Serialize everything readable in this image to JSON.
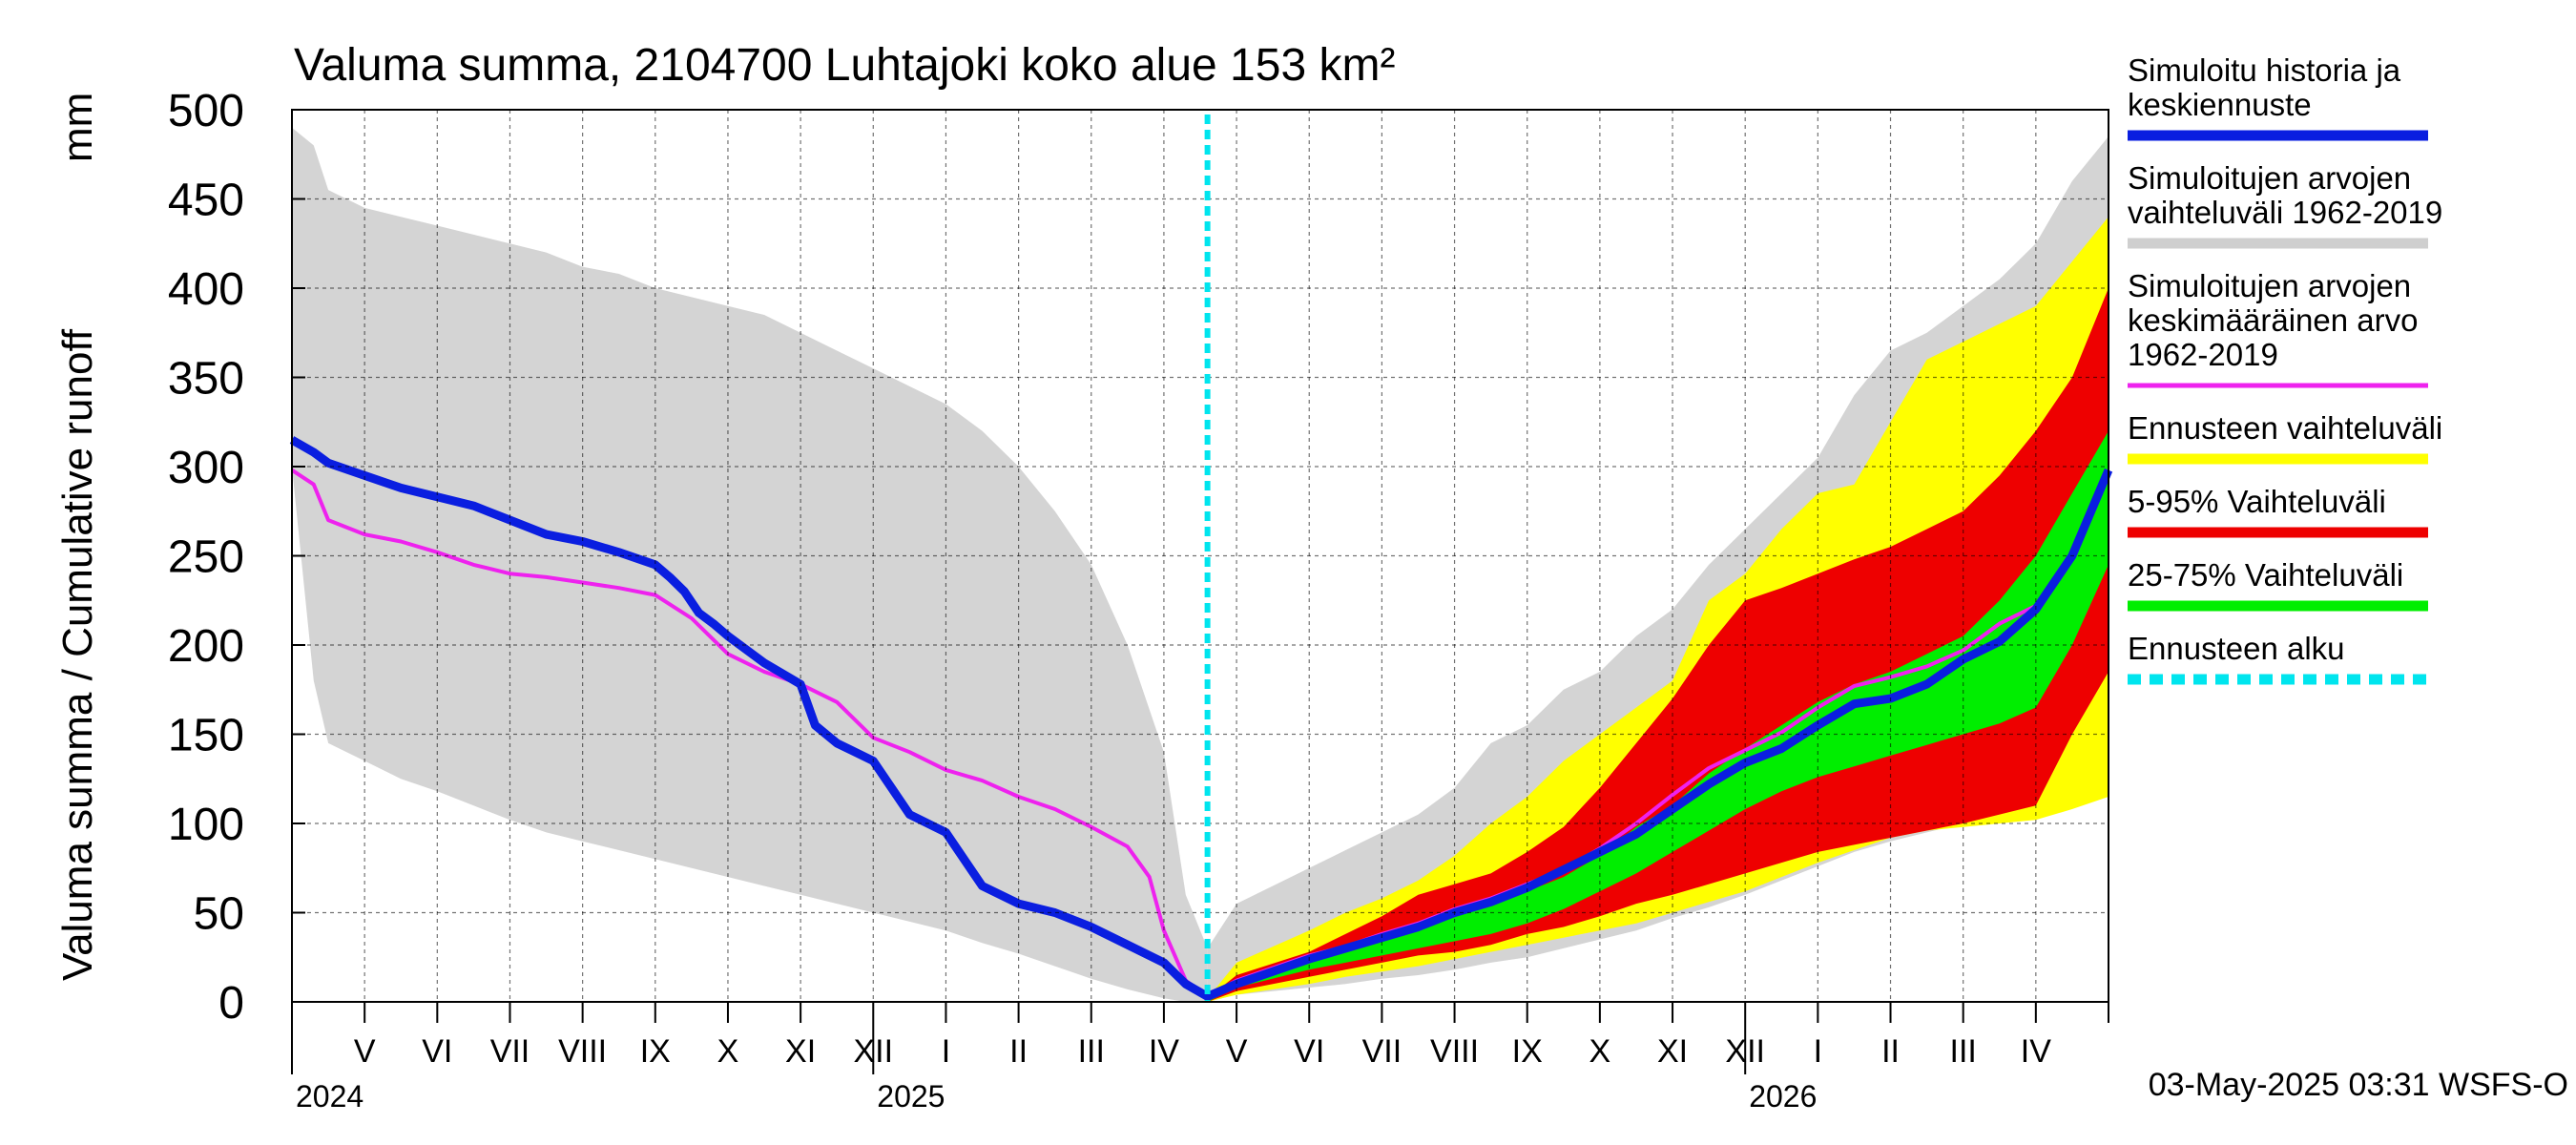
{
  "chart_data": {
    "type": "area",
    "title": "Valuma summa, 2104700 Luhtajoki koko alue 153 km²",
    "ylabel": "Valuma summa / Cumulative runoff",
    "yunit": "mm",
    "ylim": [
      0,
      500
    ],
    "yticks": [
      0,
      50,
      100,
      150,
      200,
      250,
      300,
      350,
      400,
      450,
      500
    ],
    "x_range": [
      "2024-04-15",
      "2026-05-15"
    ],
    "month_labels": [
      "V",
      "VI",
      "VII",
      "VIII",
      "IX",
      "X",
      "XI",
      "XII",
      "I",
      "II",
      "III",
      "IV",
      "V",
      "VI",
      "VII",
      "VIII",
      "IX",
      "X",
      "XI",
      "XII",
      "I",
      "II",
      "III",
      "IV"
    ],
    "year_labels": [
      "2024",
      "2025",
      "2026"
    ],
    "forecast_start": "2025-05-03",
    "footer": "03-May-2025 03:31 WSFS-O",
    "legend": [
      {
        "label": [
          "Simuloitu historia ja",
          "keskiennuste"
        ],
        "color": "#0a1ee0",
        "style": "thick"
      },
      {
        "label": [
          "Simuloitujen arvojen",
          "vaihteluväli 1962-2019"
        ],
        "color": "#cfcfcf",
        "style": "thick"
      },
      {
        "label": [
          "Simuloitujen arvojen",
          "keskimääräinen arvo",
          "   1962-2019"
        ],
        "color": "#ee22ee",
        "style": "thin"
      },
      {
        "label": [
          "Ennusteen vaihteluväli"
        ],
        "color": "#ffff00",
        "style": "thick"
      },
      {
        "label": [
          "5-95% Vaihteluväli"
        ],
        "color": "#ee0000",
        "style": "thick"
      },
      {
        "label": [
          "25-75% Vaihteluväli"
        ],
        "color": "#00ee00",
        "style": "thick"
      },
      {
        "label": [
          "Ennusteen alku"
        ],
        "color": "#00e5ee",
        "style": "dashed"
      }
    ],
    "series": [
      {
        "name": "Simuloitujen arvojen vaihteluväli 1962-2019 (historia)",
        "color": "#d4d4d4",
        "x": [
          0,
          0.3,
          0.5,
          1,
          1.5,
          2,
          2.5,
          3,
          3.5,
          4,
          4.5,
          5,
          5.5,
          6,
          6.5,
          7,
          7.5,
          8,
          8.5,
          9,
          9.5,
          10,
          10.5,
          11,
          11.5,
          12,
          12.3,
          12.6
        ],
        "upper": [
          490,
          480,
          455,
          445,
          440,
          435,
          430,
          425,
          420,
          412,
          408,
          400,
          395,
          390,
          385,
          375,
          365,
          355,
          345,
          335,
          320,
          300,
          275,
          245,
          200,
          140,
          60,
          30
        ],
        "lower": [
          300,
          180,
          145,
          135,
          125,
          118,
          110,
          102,
          95,
          90,
          85,
          80,
          75,
          70,
          65,
          60,
          55,
          50,
          45,
          40,
          33,
          27,
          20,
          13,
          7,
          2,
          0,
          0
        ]
      },
      {
        "name": "Simuloitujen arvojen vaihteluväli 1962-2019 (ennuste)",
        "color": "#d4d4d4",
        "x": [
          12.6,
          13,
          14,
          14.5,
          15,
          15.5,
          16,
          16.5,
          17,
          17.5,
          18,
          18.5,
          19,
          19.5,
          20,
          20.5,
          21,
          21.5,
          22,
          22.5,
          23,
          23.5,
          24,
          24.5,
          25
        ],
        "upper": [
          30,
          55,
          75,
          85,
          95,
          105,
          120,
          145,
          155,
          175,
          185,
          205,
          220,
          245,
          265,
          285,
          305,
          340,
          365,
          375,
          390,
          405,
          425,
          460,
          485
        ],
        "lower": [
          0,
          4,
          8,
          10,
          13,
          15,
          18,
          22,
          25,
          30,
          35,
          40,
          47,
          53,
          60,
          68,
          76,
          84,
          90,
          95,
          100,
          105,
          110,
          125,
          150
        ]
      },
      {
        "name": "Ennusteen vaihteluväli",
        "color": "#ffff00",
        "x": [
          12.6,
          13,
          14,
          14.5,
          15,
          15.5,
          16,
          16.5,
          17,
          17.5,
          18,
          18.5,
          19,
          19.5,
          20,
          20.5,
          21,
          21.5,
          22,
          22.5,
          23,
          23.5,
          24,
          24.5,
          25
        ],
        "upper": [
          2,
          22,
          40,
          50,
          58,
          68,
          82,
          100,
          115,
          135,
          150,
          165,
          180,
          225,
          240,
          265,
          285,
          290,
          325,
          360,
          370,
          380,
          390,
          415,
          440
        ],
        "lower": [
          0,
          4,
          10,
          14,
          17,
          20,
          24,
          28,
          32,
          36,
          40,
          44,
          50,
          56,
          62,
          70,
          78,
          85,
          92,
          96,
          98,
          100,
          102,
          108,
          115
        ]
      },
      {
        "name": "5-95% Vaihteluväli",
        "color": "#ee0000",
        "x": [
          12.6,
          13,
          14,
          14.5,
          15,
          15.5,
          16,
          16.5,
          17,
          17.5,
          18,
          18.5,
          19,
          19.5,
          20,
          20.5,
          21,
          21.5,
          22,
          22.5,
          23,
          23.5,
          24,
          24.5,
          25
        ],
        "upper": [
          2,
          15,
          28,
          38,
          48,
          60,
          66,
          72,
          84,
          98,
          120,
          145,
          170,
          200,
          225,
          232,
          240,
          248,
          255,
          265,
          275,
          295,
          320,
          350,
          400
        ],
        "lower": [
          0,
          6,
          14,
          18,
          22,
          26,
          28,
          32,
          38,
          42,
          48,
          55,
          60,
          66,
          72,
          78,
          84,
          88,
          92,
          96,
          100,
          105,
          110,
          150,
          185
        ]
      },
      {
        "name": "25-75% Vaihteluväli",
        "color": "#00ee00",
        "x": [
          12.6,
          13,
          14,
          14.5,
          15,
          15.5,
          16,
          16.5,
          17,
          17.5,
          18,
          18.5,
          19,
          19.5,
          20,
          20.5,
          21,
          21.5,
          22,
          22.5,
          23,
          23.5,
          24,
          24.5,
          25
        ],
        "upper": [
          2,
          10,
          24,
          30,
          36,
          42,
          50,
          56,
          62,
          70,
          82,
          98,
          110,
          128,
          142,
          155,
          168,
          178,
          185,
          195,
          205,
          225,
          250,
          285,
          320
        ],
        "lower": [
          0,
          8,
          18,
          22,
          26,
          30,
          34,
          38,
          44,
          52,
          62,
          72,
          84,
          96,
          108,
          118,
          126,
          132,
          138,
          144,
          150,
          156,
          165,
          200,
          245
        ]
      },
      {
        "name": "Simuloitujen arvojen keskimääräinen arvo 1962-2019",
        "color": "#ee22ee",
        "x": [
          0,
          0.3,
          0.5,
          1,
          1.5,
          2,
          2.5,
          3,
          3.5,
          4,
          4.5,
          5,
          5.5,
          6,
          6.5,
          7,
          7.5,
          8,
          8.5,
          9,
          9.5,
          10,
          10.5,
          11,
          11.5,
          11.8,
          12,
          12.3,
          12.6,
          13,
          14,
          14.5,
          15,
          15.5,
          16,
          16.5,
          17,
          17.5,
          18,
          18.5,
          19,
          19.5,
          20,
          20.5,
          21,
          21.5,
          22,
          22.5,
          23,
          23.5,
          24,
          24.5,
          25
        ],
        "values": [
          298,
          290,
          270,
          262,
          258,
          252,
          245,
          240,
          238,
          235,
          232,
          228,
          215,
          195,
          185,
          178,
          168,
          148,
          140,
          130,
          124,
          115,
          108,
          98,
          87,
          70,
          40,
          12,
          3,
          12,
          26,
          31,
          38,
          44,
          52,
          58,
          66,
          74,
          86,
          100,
          116,
          131,
          141,
          151,
          165,
          177,
          182,
          188,
          197,
          212,
          222,
          250,
          298
        ]
      },
      {
        "name": "Simuloitu historia ja keskiennuste",
        "color": "#0a1ee0",
        "x": [
          0,
          0.3,
          0.5,
          1,
          1.5,
          2,
          2.5,
          3,
          3.5,
          4,
          4.5,
          5,
          5.2,
          5.4,
          5.6,
          5.8,
          6,
          6.5,
          7,
          7.2,
          7.5,
          8,
          8.5,
          9,
          9.5,
          10,
          10.5,
          11,
          11.5,
          12,
          12.3,
          12.6,
          13,
          14,
          14.5,
          15,
          15.5,
          16,
          16.5,
          17,
          17.5,
          18,
          18.5,
          19,
          19.5,
          20,
          20.5,
          21,
          21.5,
          22,
          22.5,
          23,
          23.5,
          24,
          24.5,
          25
        ],
        "values": [
          315,
          308,
          302,
          295,
          288,
          283,
          278,
          270,
          262,
          258,
          252,
          245,
          238,
          230,
          218,
          212,
          205,
          190,
          178,
          155,
          145,
          135,
          105,
          95,
          65,
          55,
          50,
          42,
          32,
          22,
          10,
          3,
          10,
          24,
          30,
          36,
          42,
          50,
          56,
          64,
          74,
          84,
          94,
          108,
          122,
          134,
          142,
          155,
          167,
          170,
          178,
          192,
          202,
          220,
          250,
          298
        ]
      }
    ]
  }
}
